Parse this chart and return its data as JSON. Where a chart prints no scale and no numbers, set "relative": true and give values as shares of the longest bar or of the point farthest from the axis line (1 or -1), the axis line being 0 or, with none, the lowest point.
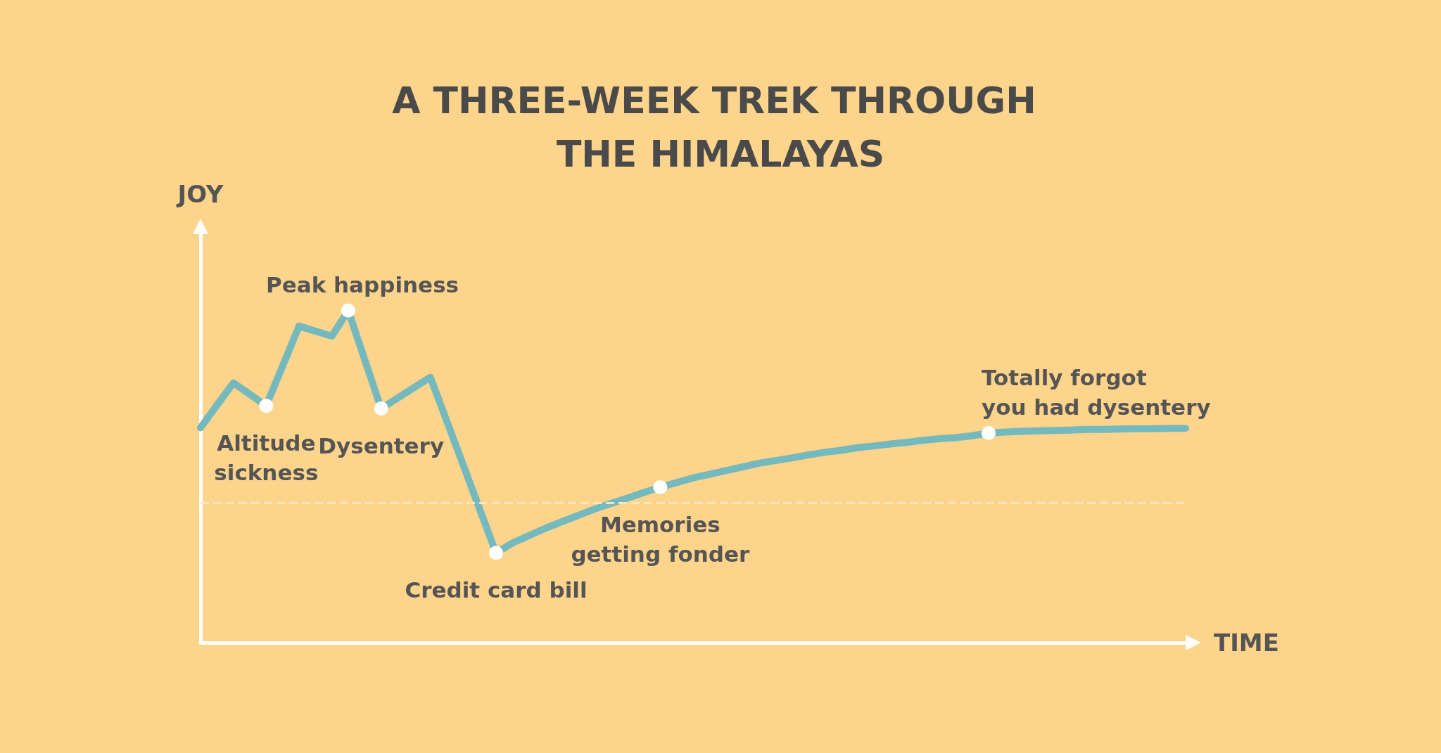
{
  "chart_data": {
    "type": "line",
    "relative": true,
    "title": "A THREE-WEEK TREK THROUGH THE HIMALAYAS",
    "xlabel": "TIME",
    "ylabel": "JOY",
    "grid": false,
    "marker": "none",
    "categories": [
      null,
      null,
      null,
      null,
      null,
      null,
      null,
      null,
      null,
      null,
      null,
      null,
      null,
      null,
      null,
      null,
      null,
      null,
      null,
      null,
      null,
      null,
      null,
      null,
      null,
      null,
      null,
      null,
      null,
      null,
      null,
      null,
      null,
      null,
      null,
      null,
      null,
      null,
      null,
      null,
      null,
      null,
      null,
      null,
      null,
      null,
      null,
      null,
      null,
      null,
      null,
      null,
      null,
      null,
      null,
      null,
      null,
      null,
      null,
      null,
      null
    ],
    "series": [
      {
        "color": "#74b9be",
        "values": [
          0.647,
          0.715,
          0.782,
          0.748,
          0.713,
          0.833,
          0.953,
          0.938,
          0.923,
          1,
          0.852,
          0.705,
          0.736,
          0.768,
          0.799,
          0.667,
          0.535,
          0.402,
          0.27,
          0.3,
          0.322,
          0.344,
          0.364,
          0.383,
          0.402,
          0.419,
          0.435,
          0.452,
          0.468,
          0.482,
          0.496,
          0.507,
          0.518,
          0.529,
          0.54,
          0.548,
          0.556,
          0.565,
          0.573,
          0.579,
          0.587,
          0.592,
          0.598,
          0.603,
          0.609,
          0.614,
          0.617,
          0.623,
          0.631,
          0.634,
          0.636,
          0.638,
          0.639,
          0.64,
          0.642,
          0.642,
          0.643,
          0.644,
          0.644,
          0.645,
          0.645
        ]
      }
    ],
    "ref_lines": [
      {
        "axis": "y",
        "value": 0.421,
        "color": "#fbe6bd",
        "line_style": "dashed"
      }
    ],
    "annotations": [
      {
        "text": "Altitude\nsickness",
        "y": 0.713
      },
      "Peak happiness",
      {
        "text": "Dysentery",
        "y": 0.705
      },
      {
        "text": "Credit card bill",
        "y": 0.27
      },
      {
        "text": "Memories\ngetting fonder",
        "y": 0.468
      },
      {
        "text": "Totally forgot\nyou had dysentery",
        "y": 0.631
      }
    ]
  }
}
